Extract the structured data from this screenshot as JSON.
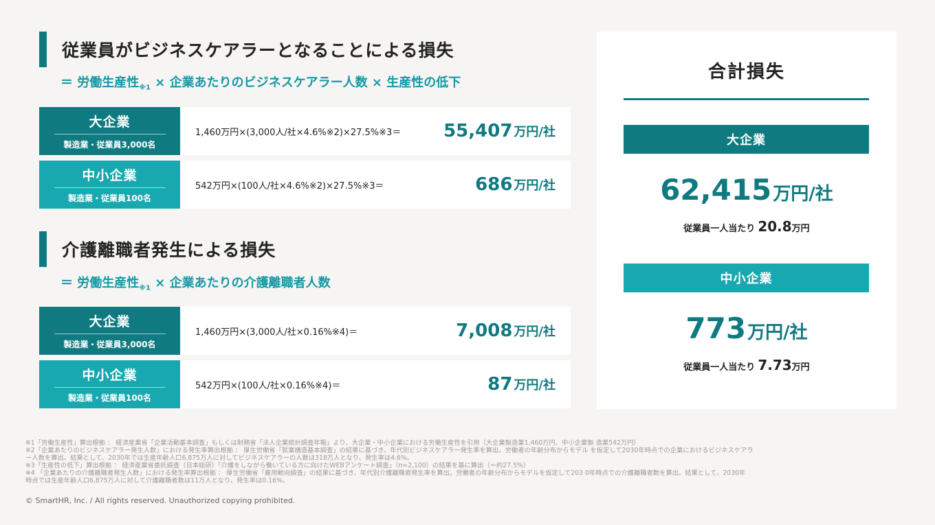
{
  "section1": {
    "title": "従業員がビジネスケアラーとなることによる損失",
    "formula_a": "＝ 労働生産性",
    "formula_sub": "※1",
    "formula_b": " × 企業あたりのビジネスケアラー人数 × 生産性の低下",
    "rows": [
      {
        "name": "大企業",
        "sub": "製造業・従業員3,000名",
        "calc": "1,460万円×(3,000人/社×4.6%※2)×27.5%※3＝",
        "value": "55,407",
        "unit": "万円/社"
      },
      {
        "name": "中小企業",
        "sub": "製造業・従業員100名",
        "calc": "542万円×(100人/社×4.6%※2)×27.5%※3＝",
        "value": "686",
        "unit": "万円/社"
      }
    ]
  },
  "section2": {
    "title": "介護離職者発生による損失",
    "formula_a": "＝ 労働生産性",
    "formula_sub": "※1",
    "formula_b": " × 企業あたりの介護離職者人数",
    "rows": [
      {
        "name": "大企業",
        "sub": "製造業・従業員3,000名",
        "calc": "1,460万円×(3,000人/社×0.16%※4)＝",
        "value": "7,008",
        "unit": "万円/社"
      },
      {
        "name": "中小企業",
        "sub": "製造業・従業員100名",
        "calc": "542万円×(100人/社×0.16%※4)＝",
        "value": "87",
        "unit": "万円/社"
      }
    ]
  },
  "total": {
    "title": "合計損失",
    "large": {
      "label": "大企業",
      "value": "62,415",
      "unit": "万円/社",
      "per_label": "従業員一人当たり",
      "per_value": "20.8",
      "per_unit": "万円"
    },
    "small": {
      "label": "中小企業",
      "value": "773",
      "unit": "万円/社",
      "per_label": "従業員一人当たり",
      "per_value": "7.73",
      "per_unit": "万円"
    }
  },
  "notes": [
    "※1「労働生産性」算出根拠 ： 経済産業省「企業活動基本調査」もしくは財務省「法人企業統計調査年報」より、大企業・中小企業における労働生産性を引用（大企業製造業1,460万円、中小企業製 造業542万円）",
    "※2「企業あたりのビジネスケアラー発生人数」における発生率算出根拠 ： 厚生労働省「就業構造基本調査」の結果に基づき、年代別ビジネスケアラー発生率を算出。労働者の年齢分布からモデル を仮定して2030年時点での企業におけるビジネスケアラ",
    "ー人数を算出。結果として、2030年では生産年齢人口6,875万人に対してビジネスケアラーの人数は318万人となり、発生率は4.6%。",
    "※3「生産性の低下」算出根拠 ： 経済産業省委託調査（日本総研）「介護をしながら働いている方に向けたWEBアンケート調査」（n=2,100）の結果を基に算出（＝約27.5%）",
    "※4 「企業あたりの介護離職者発生人数」における発生率算出根拠 ： 厚生労働省「雇用動向調査」の結果に基づき、年代別介護離職者発生率を算出。労働者の年齢分布からモデルを仮定して203 0年時点での介護離職者数を算出。結果として、2030年",
    "時点では生産年齢人口6,875万人に対して介護離職者数は11万人となり、発生率は0.16%。"
  ],
  "copyright": "© SmartHR, Inc. / All rights reserved. Unauthorized copying prohibited.",
  "colors": {
    "dark_teal": "#0f7a80",
    "light_teal": "#18a8b0",
    "formula_text": "#1498a5"
  }
}
